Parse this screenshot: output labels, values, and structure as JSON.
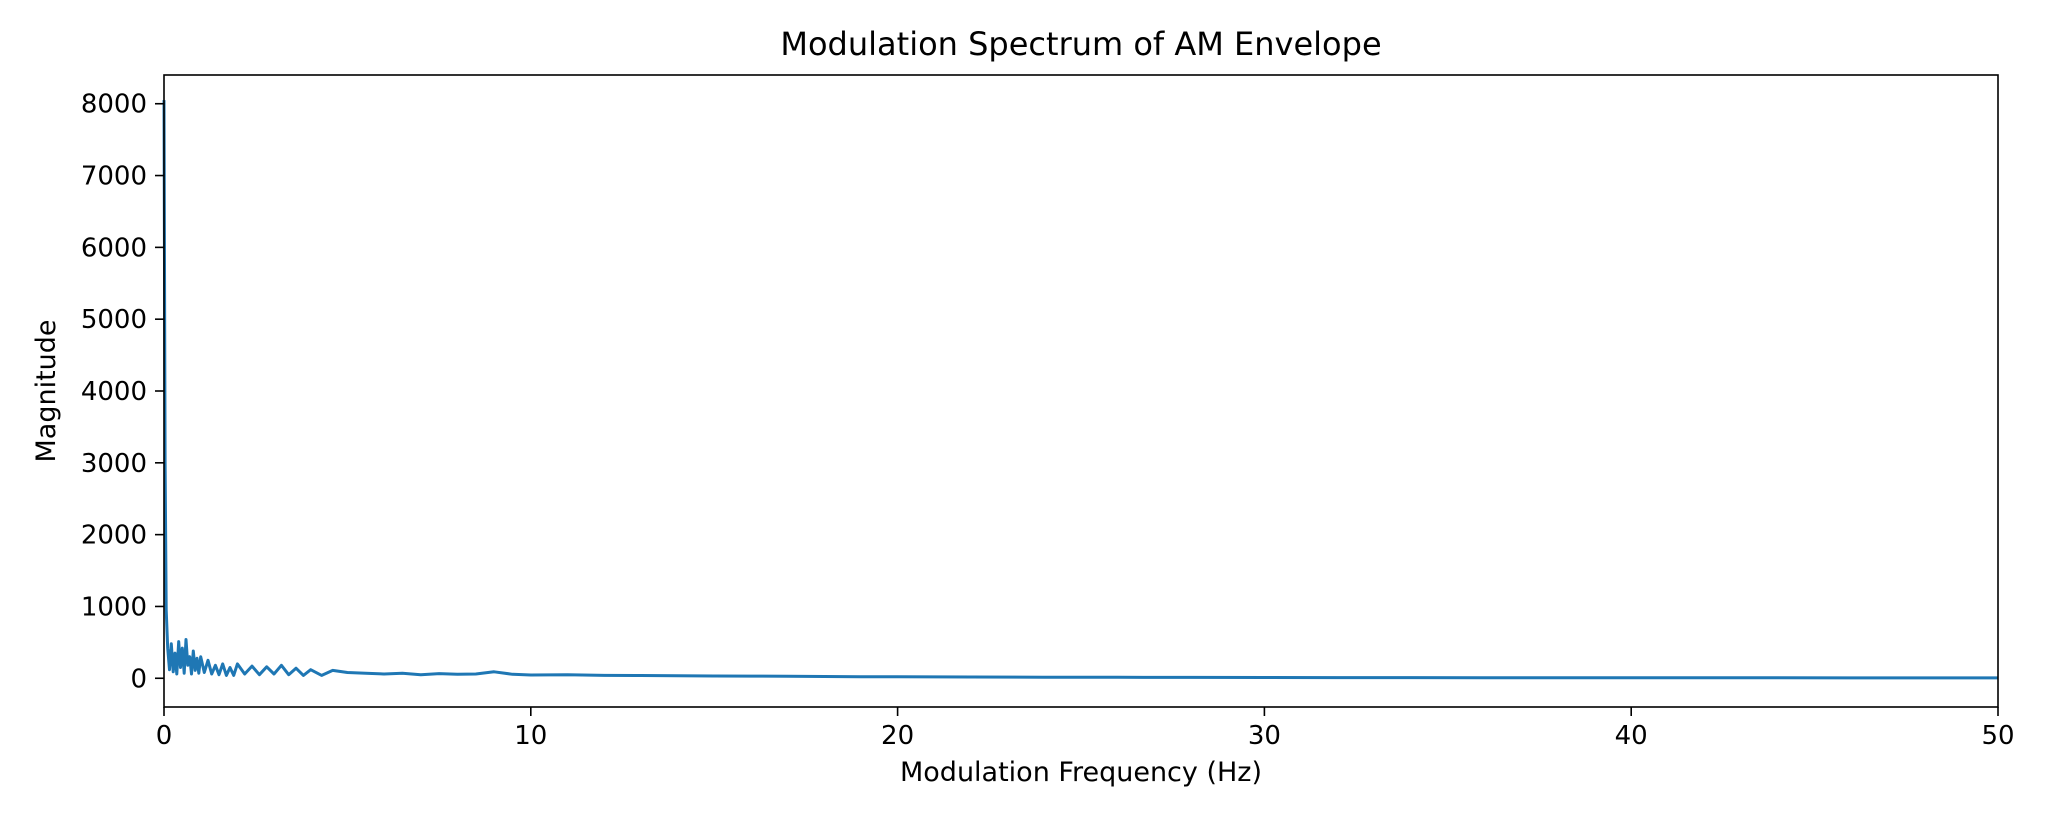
{
  "chart_data": {
    "type": "line",
    "title": "Modulation Spectrum of AM Envelope",
    "xlabel": "Modulation Frequency (Hz)",
    "ylabel": "Magnitude",
    "xlim": [
      0,
      50
    ],
    "ylim": [
      -400,
      8400
    ],
    "xticks": [
      0,
      10,
      20,
      30,
      40,
      50
    ],
    "xtick_labels": [
      "0",
      "10",
      "20",
      "30",
      "40",
      "50"
    ],
    "yticks": [
      0,
      1000,
      2000,
      3000,
      4000,
      5000,
      6000,
      7000,
      8000
    ],
    "ytick_labels": [
      "0",
      "1000",
      "2000",
      "3000",
      "4000",
      "5000",
      "6000",
      "7000",
      "8000"
    ],
    "grid": false,
    "legend": "none",
    "colors": {
      "line": "#1f77b4",
      "frame": "#000000"
    },
    "series": [
      {
        "x": [
          0,
          0.03,
          0.06,
          0.1,
          0.15,
          0.2,
          0.25,
          0.3,
          0.35,
          0.4,
          0.45,
          0.5,
          0.55,
          0.6,
          0.65,
          0.7,
          0.75,
          0.8,
          0.85,
          0.9,
          0.95,
          1.0,
          1.1,
          1.2,
          1.3,
          1.4,
          1.5,
          1.6,
          1.7,
          1.8,
          1.9,
          2.0,
          2.2,
          2.4,
          2.6,
          2.8,
          3.0,
          3.2,
          3.4,
          3.6,
          3.8,
          4.0,
          4.3,
          4.6,
          5.0,
          5.5,
          6.0,
          6.5,
          7.0,
          7.5,
          8.0,
          8.5,
          9.0,
          9.5,
          10.0,
          11,
          12,
          13,
          14,
          15,
          16,
          17,
          18,
          19,
          20,
          22,
          24,
          26,
          28,
          30,
          32,
          34,
          36,
          38,
          40,
          42,
          44,
          46,
          48,
          50
        ],
        "y": [
          8050,
          3000,
          950,
          420,
          120,
          480,
          90,
          350,
          60,
          510,
          150,
          420,
          70,
          540,
          180,
          300,
          60,
          380,
          110,
          280,
          70,
          300,
          80,
          250,
          60,
          180,
          50,
          200,
          40,
          150,
          40,
          200,
          60,
          170,
          50,
          160,
          60,
          180,
          50,
          140,
          40,
          120,
          40,
          110,
          80,
          70,
          60,
          70,
          50,
          65,
          55,
          60,
          90,
          55,
          45,
          50,
          40,
          38,
          35,
          32,
          30,
          28,
          25,
          22,
          20,
          18,
          15,
          14,
          12,
          11,
          10,
          9,
          8,
          8,
          7,
          6,
          6,
          5,
          5,
          5
        ]
      }
    ]
  }
}
